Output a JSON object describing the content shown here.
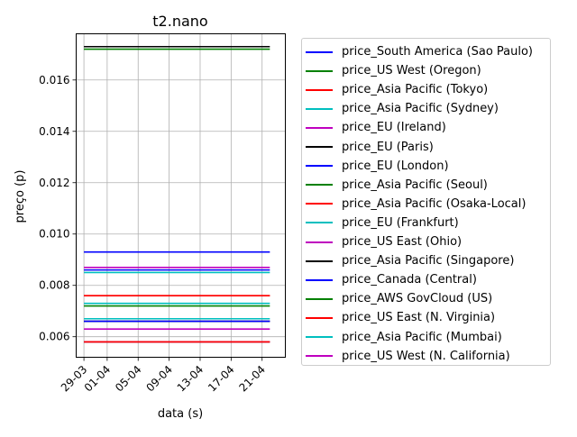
{
  "chart_data": {
    "type": "line",
    "title": "t2.nano",
    "xlabel": "data (s)",
    "ylabel": "preço (p)",
    "x_range": [
      "2018-03-28",
      "2018-04-24"
    ],
    "x_start": "2018-03-29",
    "x_end": "2018-04-22",
    "x_ticks": [
      "29-03",
      "01-04",
      "05-04",
      "09-04",
      "13-04",
      "17-04",
      "21-04"
    ],
    "y_range": [
      0.0052,
      0.0178
    ],
    "y_ticks": [
      0.006,
      0.008,
      0.01,
      0.012,
      0.014,
      0.016
    ],
    "y_tick_labels": [
      "0.006",
      "0.008",
      "0.010",
      "0.012",
      "0.014",
      "0.016"
    ],
    "grid": true,
    "legend_position": "outside right",
    "series": [
      {
        "name": "price_South America (Sao Paulo)",
        "color": "#0000ff",
        "value": 0.0093
      },
      {
        "name": "price_US West (Oregon)",
        "color": "#008000",
        "value": 0.0058
      },
      {
        "name": "price_Asia Pacific (Tokyo)",
        "color": "#ff0000",
        "value": 0.0076
      },
      {
        "name": "price_Asia Pacific (Sydney)",
        "color": "#00bfbf",
        "value": 0.0073
      },
      {
        "name": "price_EU (Ireland)",
        "color": "#bf00bf",
        "value": 0.0063
      },
      {
        "name": "price_EU (Paris)",
        "color": "#000000",
        "value": 0.0066
      },
      {
        "name": "price_EU (London)",
        "color": "#0000ff",
        "value": 0.0066
      },
      {
        "name": "price_Asia Pacific (Seoul)",
        "color": "#008000",
        "value": 0.0072
      },
      {
        "name": "price_Asia Pacific (Osaka-Local)",
        "color": "#ff0000",
        "value": 0.0076
      },
      {
        "name": "price_EU (Frankfurt)",
        "color": "#00bfbf",
        "value": 0.0067
      },
      {
        "name": "price_US East (Ohio)",
        "color": "#bf00bf",
        "value": 0.0058
      },
      {
        "name": "price_Asia Pacific (Singapore)",
        "color": "#000000",
        "value": 0.0173
      },
      {
        "name": "price_Canada (Central)",
        "color": "#0000ff",
        "value": 0.0086
      },
      {
        "name": "price_AWS GovCloud (US)",
        "color": "#008000",
        "value": 0.0172
      },
      {
        "name": "price_US East (N. Virginia)",
        "color": "#ff0000",
        "value": 0.0058
      },
      {
        "name": "price_Asia Pacific (Mumbai)",
        "color": "#00bfbf",
        "value": 0.0085
      },
      {
        "name": "price_US West (N. California)",
        "color": "#bf00bf",
        "value": 0.0087
      }
    ]
  }
}
